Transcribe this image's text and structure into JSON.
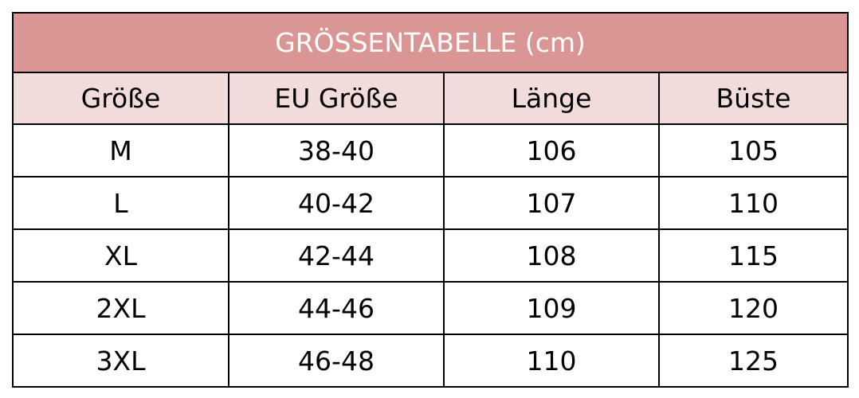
{
  "title": "GRÖSSENTABELLE (cm)",
  "colors": {
    "title_bg": "#da9694",
    "header_bg": "#f2dcdb"
  },
  "headers": [
    "Größe",
    "EU Größe",
    "Länge",
    "Büste"
  ],
  "rows": [
    [
      "M",
      "38-40",
      "106",
      "105"
    ],
    [
      "L",
      "40-42",
      "107",
      "110"
    ],
    [
      "XL",
      "42-44",
      "108",
      "115"
    ],
    [
      "2XL",
      "44-46",
      "109",
      "120"
    ],
    [
      "3XL",
      "46-48",
      "110",
      "125"
    ]
  ]
}
